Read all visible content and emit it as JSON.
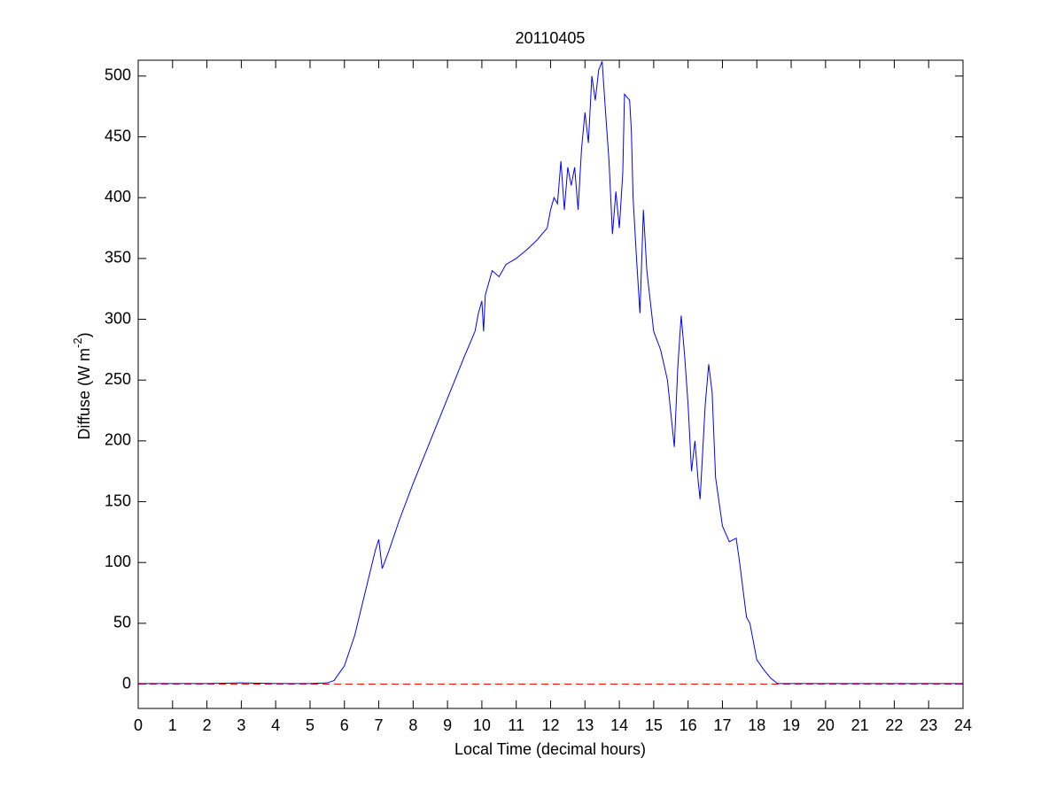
{
  "chart_data": {
    "type": "line",
    "title": "20110405",
    "xlabel": "Local Time (decimal hours)",
    "ylabel": [
      "Diffuse (W m",
      "-2",
      ")"
    ],
    "xlim": [
      0,
      24
    ],
    "ylim": [
      -20,
      513
    ],
    "xticks": [
      0,
      1,
      2,
      3,
      4,
      5,
      6,
      7,
      8,
      9,
      10,
      11,
      12,
      13,
      14,
      15,
      16,
      17,
      18,
      19,
      20,
      21,
      22,
      23,
      24
    ],
    "yticks": [
      0,
      50,
      100,
      150,
      200,
      250,
      300,
      350,
      400,
      450,
      500
    ],
    "reference_line": {
      "y": 0,
      "color": "#ff0000",
      "style": "dashed"
    },
    "series": [
      {
        "color": "#0000ff",
        "x": [
          0,
          1,
          2,
          3,
          4,
          5,
          5.5,
          5.7,
          6,
          6.3,
          6.6,
          6.9,
          7.0,
          7.1,
          7.3,
          7.6,
          8,
          8.5,
          9,
          9.5,
          9.8,
          9.9,
          10,
          10.05,
          10.1,
          10.3,
          10.5,
          10.7,
          11,
          11.3,
          11.6,
          11.9,
          12,
          12.1,
          12.2,
          12.3,
          12.4,
          12.5,
          12.6,
          12.7,
          12.8,
          12.9,
          13,
          13.1,
          13.2,
          13.3,
          13.4,
          13.5,
          13.6,
          13.7,
          13.8,
          13.9,
          14,
          14.1,
          14.15,
          14.3,
          14.35,
          14.4,
          14.5,
          14.6,
          14.7,
          14.8,
          15,
          15.2,
          15.4,
          15.6,
          15.7,
          15.8,
          15.9,
          16,
          16.1,
          16.2,
          16.3,
          16.35,
          16.5,
          16.6,
          16.7,
          16.8,
          17,
          17.2,
          17.4,
          17.5,
          17.7,
          17.8,
          17.9,
          18,
          18.2,
          18.4,
          18.6,
          19,
          20,
          21,
          22,
          23,
          24
        ],
        "values": [
          0.5,
          0.5,
          0.5,
          1,
          0.5,
          0.5,
          1,
          3,
          15,
          40,
          75,
          110,
          119,
          95,
          110,
          135,
          165,
          200,
          235,
          270,
          290,
          305,
          315,
          290,
          320,
          340,
          335,
          345,
          350,
          357,
          365,
          375,
          390,
          400,
          395,
          430,
          390,
          425,
          410,
          425,
          390,
          440,
          470,
          445,
          500,
          480,
          505,
          512,
          470,
          430,
          370,
          405,
          375,
          420,
          485,
          480,
          455,
          400,
          350,
          305,
          390,
          340,
          290,
          275,
          250,
          195,
          260,
          303,
          270,
          230,
          175,
          200,
          165,
          152,
          230,
          263,
          240,
          170,
          130,
          117,
          120,
          100,
          55,
          50,
          35,
          20,
          12,
          5,
          0.5,
          0.5,
          0.5,
          0.5,
          0.5,
          0.5,
          0.5
        ]
      }
    ]
  }
}
